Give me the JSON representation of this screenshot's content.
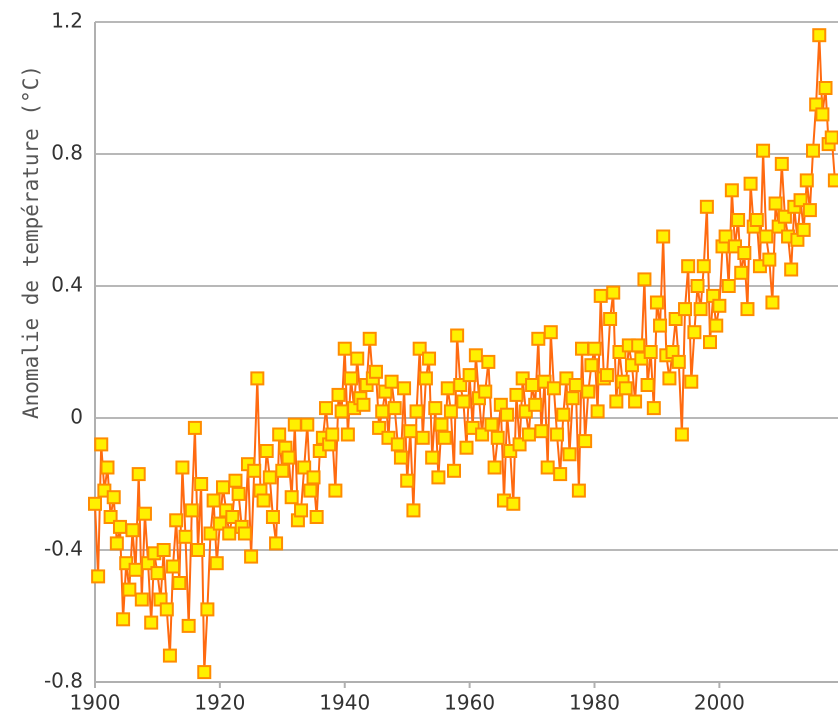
{
  "chart_data": {
    "type": "scatter",
    "y_label": "Anomalie de température (°C)",
    "xlim": [
      1900,
      2019
    ],
    "ylim": [
      -0.8,
      1.2
    ],
    "xticks": [
      1900,
      1920,
      1940,
      1960,
      1980,
      2000
    ],
    "yticks": [
      -0.8,
      -0.4,
      0,
      0.4,
      0.8,
      1.2
    ],
    "grid": true,
    "line_color": "#ff6a10",
    "marker_fill": "#fff000",
    "marker_stroke": "#ff8c00",
    "x": [
      1900,
      1900.5,
      1901,
      1901.5,
      1902,
      1902.5,
      1903,
      1903.5,
      1904,
      1904.5,
      1905,
      1905.5,
      1906,
      1906.5,
      1907,
      1907.5,
      1908,
      1908.5,
      1909,
      1909.5,
      1910,
      1910.5,
      1911,
      1911.5,
      1912,
      1912.5,
      1913,
      1913.5,
      1914,
      1914.5,
      1915,
      1915.5,
      1916,
      1916.5,
      1917,
      1917.5,
      1918,
      1918.5,
      1919,
      1919.5,
      1920,
      1920.5,
      1921,
      1921.5,
      1922,
      1922.5,
      1923,
      1923.5,
      1924,
      1924.5,
      1925,
      1925.5,
      1926,
      1926.5,
      1927,
      1927.5,
      1928,
      1928.5,
      1929,
      1929.5,
      1930,
      1930.5,
      1931,
      1931.5,
      1932,
      1932.5,
      1933,
      1933.5,
      1934,
      1934.5,
      1935,
      1935.5,
      1936,
      1936.5,
      1937,
      1937.5,
      1938,
      1938.5,
      1939,
      1939.5,
      1940,
      1940.5,
      1941,
      1941.5,
      1942,
      1942.5,
      1943,
      1943.5,
      1944,
      1944.5,
      1945,
      1945.5,
      1946,
      1946.5,
      1947,
      1947.5,
      1948,
      1948.5,
      1949,
      1949.5,
      1950,
      1950.5,
      1951,
      1951.5,
      1952,
      1952.5,
      1953,
      1953.5,
      1954,
      1954.5,
      1955,
      1955.5,
      1956,
      1956.5,
      1957,
      1957.5,
      1958,
      1958.5,
      1959,
      1959.5,
      1960,
      1960.5,
      1961,
      1961.5,
      1962,
      1962.5,
      1963,
      1963.5,
      1964,
      1964.5,
      1965,
      1965.5,
      1966,
      1966.5,
      1967,
      1967.5,
      1968,
      1968.5,
      1969,
      1969.5,
      1970,
      1970.5,
      1971,
      1971.5,
      1972,
      1972.5,
      1973,
      1973.5,
      1974,
      1974.5,
      1975,
      1975.5,
      1976,
      1976.5,
      1977,
      1977.5,
      1978,
      1978.5,
      1979,
      1979.5,
      1980,
      1980.5,
      1981,
      1981.5,
      1982,
      1982.5,
      1983,
      1983.5,
      1984,
      1984.5,
      1985,
      1985.5,
      1986,
      1986.5,
      1987,
      1987.5,
      1988,
      1988.5,
      1989,
      1989.5,
      1990,
      1990.5,
      1991,
      1991.5,
      1992,
      1992.5,
      1993,
      1993.5,
      1994,
      1994.5,
      1995,
      1995.5,
      1996,
      1996.5,
      1997,
      1997.5,
      1998,
      1998.5,
      1999,
      1999.5,
      2000,
      2000.5,
      2001,
      2001.5,
      2002,
      2002.5,
      2003,
      2003.5,
      2004,
      2004.5,
      2005,
      2005.5,
      2006,
      2006.5,
      2007,
      2007.5,
      2008,
      2008.5,
      2009,
      2009.5,
      2010,
      2010.5,
      2011,
      2011.5,
      2012,
      2012.5,
      2013,
      2013.5,
      2014,
      2014.5,
      2015,
      2015.5,
      2016,
      2016.5,
      2017,
      2017.5,
      2018,
      2018.5
    ],
    "values": [
      -0.26,
      -0.48,
      -0.08,
      -0.22,
      -0.15,
      -0.3,
      -0.24,
      -0.38,
      -0.33,
      -0.61,
      -0.44,
      -0.52,
      -0.34,
      -0.46,
      -0.17,
      -0.55,
      -0.29,
      -0.44,
      -0.62,
      -0.41,
      -0.47,
      -0.55,
      -0.4,
      -0.58,
      -0.72,
      -0.45,
      -0.31,
      -0.5,
      -0.15,
      -0.36,
      -0.63,
      -0.28,
      -0.03,
      -0.4,
      -0.2,
      -0.77,
      -0.58,
      -0.35,
      -0.25,
      -0.44,
      -0.32,
      -0.21,
      -0.28,
      -0.35,
      -0.3,
      -0.19,
      -0.23,
      -0.33,
      -0.35,
      -0.14,
      -0.42,
      -0.16,
      0.12,
      -0.22,
      -0.25,
      -0.1,
      -0.18,
      -0.3,
      -0.38,
      -0.05,
      -0.16,
      -0.09,
      -0.12,
      -0.24,
      -0.02,
      -0.31,
      -0.28,
      -0.15,
      -0.02,
      -0.22,
      -0.18,
      -0.3,
      -0.1,
      -0.06,
      0.03,
      -0.08,
      -0.05,
      -0.22,
      0.07,
      0.02,
      0.21,
      -0.05,
      0.12,
      0.03,
      0.18,
      0.06,
      0.04,
      0.1,
      0.24,
      0.12,
      0.14,
      -0.03,
      0.02,
      0.08,
      -0.06,
      0.11,
      0.03,
      -0.08,
      -0.12,
      0.09,
      -0.19,
      -0.04,
      -0.28,
      0.02,
      0.21,
      -0.06,
      0.12,
      0.18,
      -0.12,
      0.03,
      -0.18,
      -0.02,
      -0.06,
      0.09,
      0.02,
      -0.16,
      0.25,
      0.1,
      0.05,
      -0.09,
      0.13,
      -0.03,
      0.19,
      0.06,
      -0.05,
      0.08,
      0.17,
      -0.02,
      -0.15,
      -0.06,
      0.04,
      -0.25,
      0.01,
      -0.1,
      -0.26,
      0.07,
      -0.08,
      0.12,
      0.02,
      -0.05,
      0.1,
      0.04,
      0.24,
      -0.04,
      0.11,
      -0.15,
      0.26,
      0.09,
      -0.05,
      -0.17,
      0.01,
      0.12,
      -0.11,
      0.06,
      0.1,
      -0.22,
      0.21,
      -0.07,
      0.08,
      0.16,
      0.21,
      0.02,
      0.37,
      0.12,
      0.13,
      0.3,
      0.38,
      0.05,
      0.2,
      0.11,
      0.09,
      0.22,
      0.16,
      0.05,
      0.22,
      0.18,
      0.42,
      0.1,
      0.2,
      0.03,
      0.35,
      0.28,
      0.55,
      0.19,
      0.12,
      0.2,
      0.3,
      0.17,
      -0.05,
      0.33,
      0.46,
      0.11,
      0.26,
      0.4,
      0.33,
      0.46,
      0.64,
      0.23,
      0.37,
      0.28,
      0.34,
      0.52,
      0.55,
      0.4,
      0.69,
      0.52,
      0.6,
      0.44,
      0.5,
      0.33,
      0.71,
      0.58,
      0.6,
      0.46,
      0.81,
      0.55,
      0.48,
      0.35,
      0.65,
      0.58,
      0.77,
      0.61,
      0.55,
      0.45,
      0.64,
      0.54,
      0.66,
      0.57,
      0.72,
      0.63,
      0.81,
      0.95,
      1.16,
      0.92,
      1.0,
      0.83,
      0.85,
      0.72
    ]
  }
}
